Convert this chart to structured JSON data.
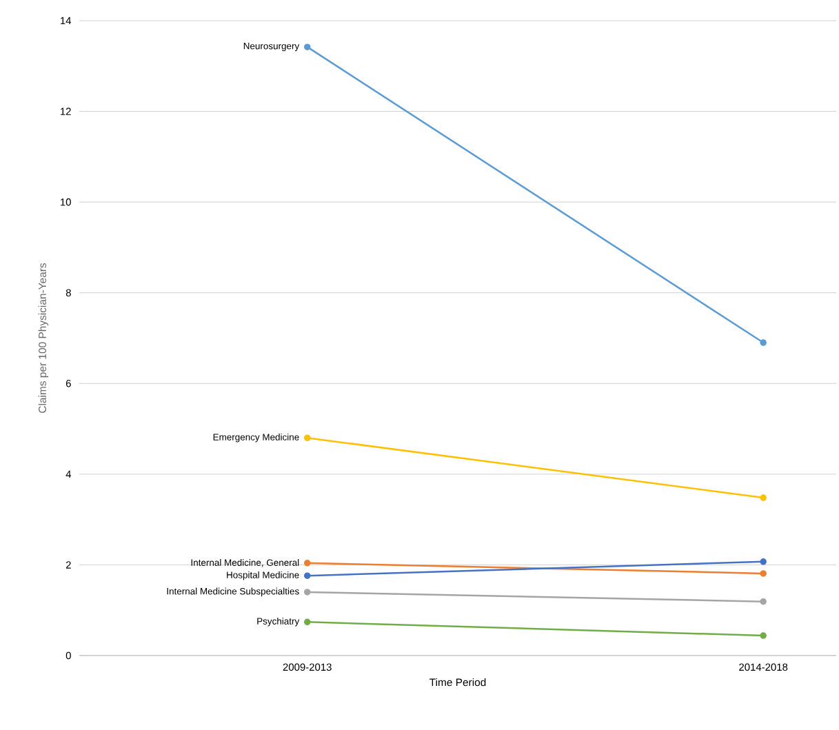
{
  "chart_data": {
    "type": "line",
    "xlabel": "Time Period",
    "ylabel": "Claims per 100 Physician-Years",
    "categories": [
      "2009-2013",
      "2014-2018"
    ],
    "ylim": [
      0,
      14
    ],
    "yticks": [
      0,
      2,
      4,
      6,
      8,
      10,
      12,
      14
    ],
    "grid": "y",
    "legend": false,
    "marker": "circle",
    "line_style": "solid",
    "series": [
      {
        "name": "Neurosurgery",
        "color": "#5b9bd5",
        "values": [
          13.42,
          6.9
        ]
      },
      {
        "name": "Emergency Medicine",
        "color": "#ffc000",
        "values": [
          4.8,
          3.48
        ]
      },
      {
        "name": "Internal Medicine, General",
        "color": "#ed7d31",
        "values": [
          2.04,
          1.81
        ]
      },
      {
        "name": "Hospital Medicine",
        "color": "#4472c4",
        "values": [
          1.76,
          2.07
        ]
      },
      {
        "name": "Internal Medicine Subspecialties",
        "color": "#a5a5a5",
        "values": [
          1.4,
          1.19
        ]
      },
      {
        "name": "Psychiatry",
        "color": "#70ad47",
        "values": [
          0.74,
          0.44
        ]
      }
    ]
  }
}
